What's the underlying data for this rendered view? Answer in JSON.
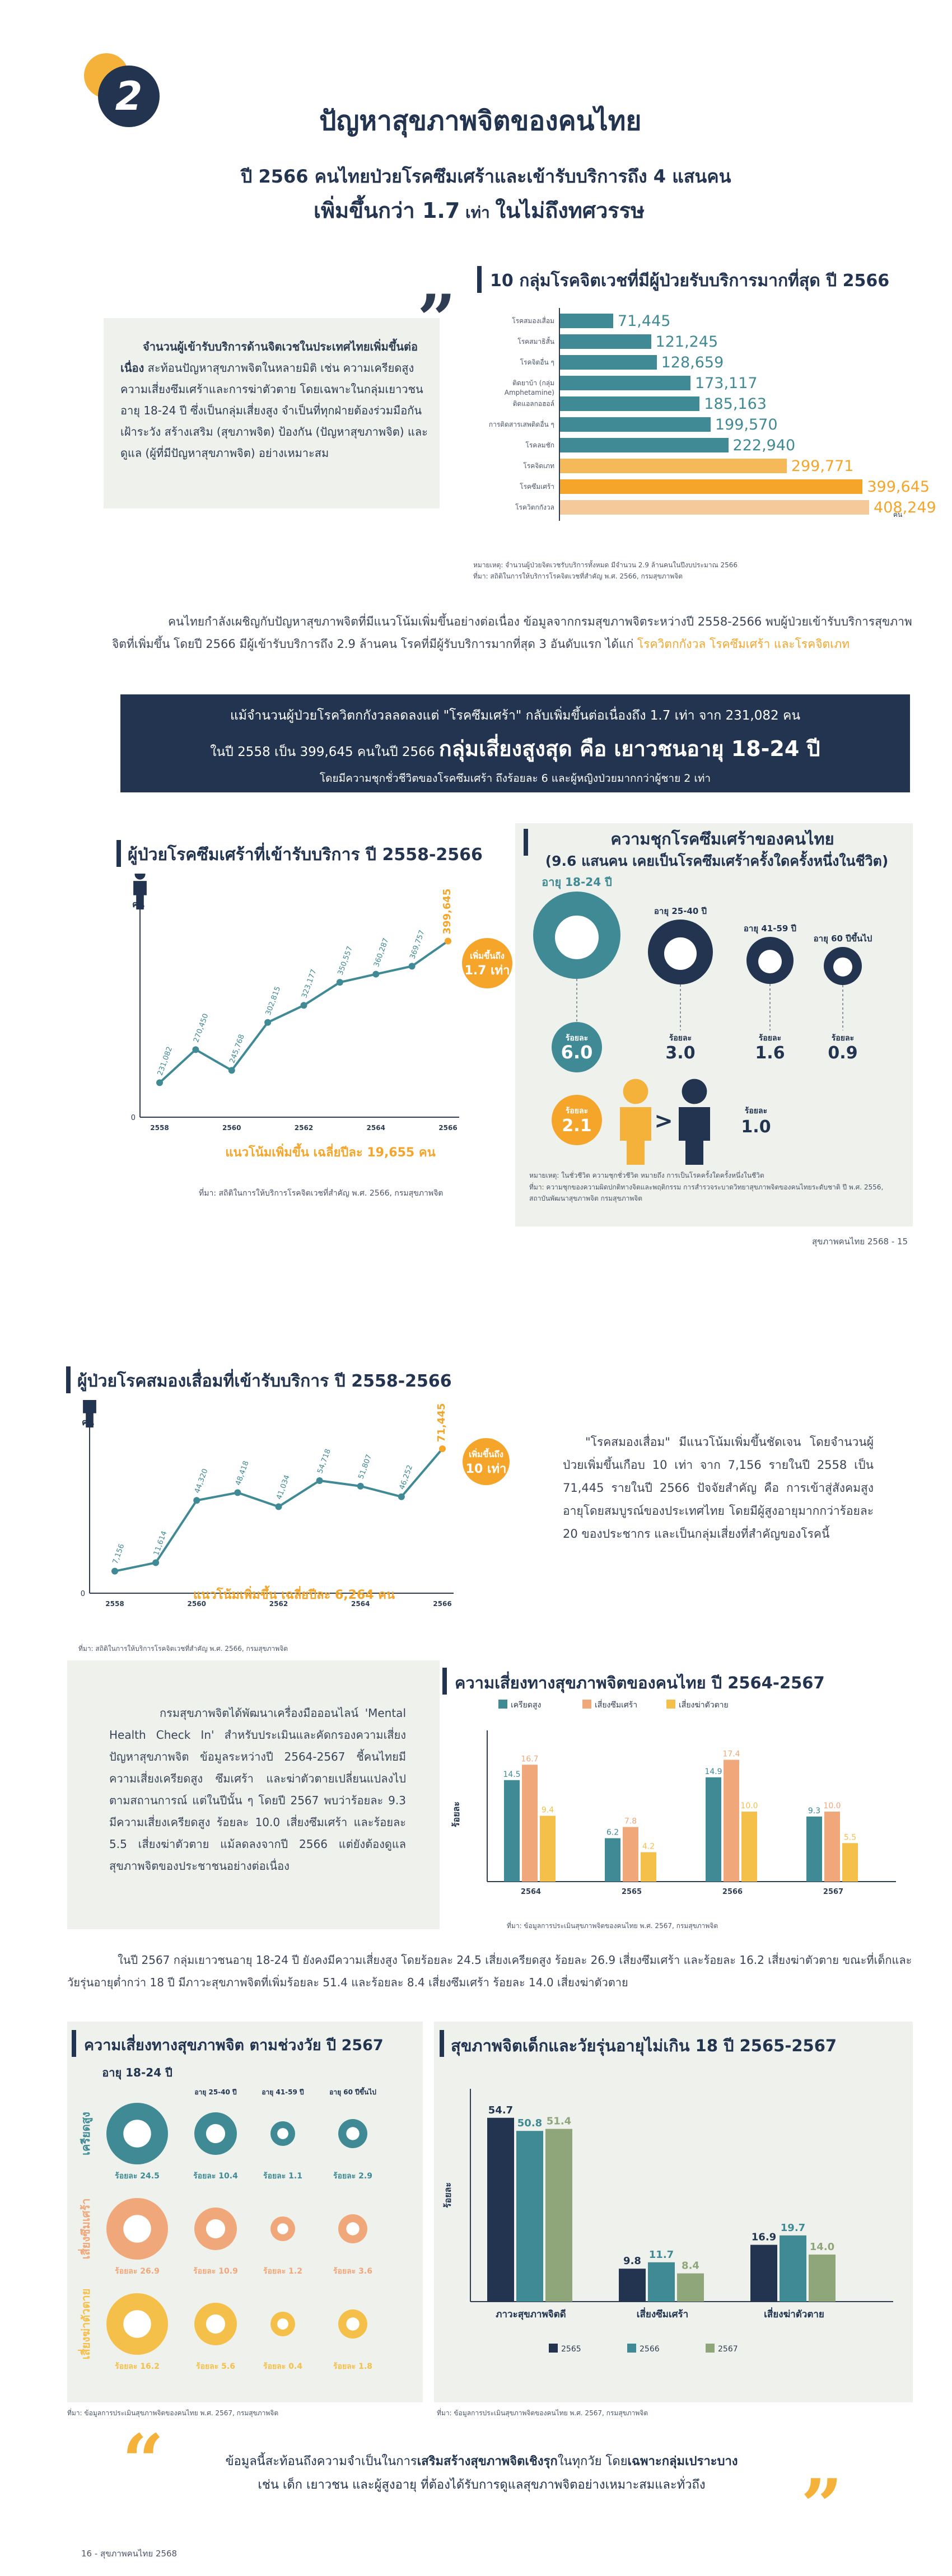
{
  "section_number": "2",
  "title": "ปัญหาสุขภาพจิตของคนไทย",
  "subtitle1": "ปี 2566 คนไทยป่วยโรคซึมเศร้าและเข้ารับบริการถึง 4 แสนคน",
  "subtitle2_pre": "เพิ่มขึ้นกว่า 1.7",
  "subtitle2_mid": " เท่า ",
  "subtitle2_post": "ในไม่ถึงทศวรรษ",
  "intro_box": {
    "bold": "จำนวนผู้เข้ารับบริการด้านจิตเวชในประเทศไทยเพิ่มขึ้นต่อเนื่อง",
    "text": " สะท้อนปัญหาสุขภาพจิตในหลายมิติ เช่น ความเครียดสูง ความเสี่ยงซึมเศร้าและการฆ่าตัวตาย โดยเฉพาะในกลุ่มเยาวชนอายุ 18-24 ปี ซึ่งเป็นกลุ่มเสี่ยงสูง จำเป็นที่ทุกฝ่ายต้องร่วมมือกันเฝ้าระวัง สร้างเสริม (สุขภาพจิต) ป้องกัน (ปัญหาสุขภาพจิต) และดูแล (ผู้ที่มีปัญหาสุขภาพจิต) อย่างเหมาะสม"
  },
  "top10": {
    "title": "10 กลุ่มโรคจิตเวชที่มีผู้ป่วยรับบริการมากที่สุด ปี 2566",
    "unit": "คน",
    "items": [
      {
        "label": "โรคสมองเสื่อม",
        "value": "71,445",
        "num": 71445,
        "highlight": false
      },
      {
        "label": "โรคสมาธิสั้น",
        "value": "121,245",
        "num": 121245,
        "highlight": false
      },
      {
        "label": "โรคจิตอื่น ๆ",
        "value": "128,659",
        "num": 128659,
        "highlight": false
      },
      {
        "label": "ติดยาบ้า (กลุ่ม Amphetamine)",
        "value": "173,117",
        "num": 173117,
        "highlight": false
      },
      {
        "label": "ติดแอลกอฮอล์",
        "value": "185,163",
        "num": 185163,
        "highlight": false
      },
      {
        "label": "การติดสารเสพติดอื่น ๆ",
        "value": "199,570",
        "num": 199570,
        "highlight": false
      },
      {
        "label": "โรคลมชัก",
        "value": "222,940",
        "num": 222940,
        "highlight": false
      },
      {
        "label": "โรคจิตเภท",
        "value": "299,771",
        "num": 299771,
        "highlight": "light"
      },
      {
        "label": "โรคซึมเศร้า",
        "value": "399,645",
        "num": 399645,
        "highlight": "strong"
      },
      {
        "label": "โรควิตกกังวล",
        "value": "408,249",
        "num": 408249,
        "highlight": "pale"
      }
    ],
    "note": "หมายเหตุ: จำนวนผู้ป่วยจิตเวชรับบริการทั้งหมด มีจำนวน 2.9 ล้านคนในปีงบประมาณ 2566",
    "source": "ที่มา: สถิติในการให้บริการโรคจิตเวชที่สำคัญ พ.ศ. 2566, กรมสุขภาพจิต"
  },
  "para1": {
    "text": "คนไทยกำลังเผชิญกับปัญหาสุขภาพจิตที่มีแนวโน้มเพิ่มขึ้นอย่างต่อเนื่อง ข้อมูลจากกรมสุขภาพจิตระหว่างปี 2558-2566 พบผู้ป่วยเข้ารับบริการสุขภาพจิตที่เพิ่มขึ้น โดยปี 2566 มีผู้เข้ารับบริการถึง 2.9 ล้านคน โรคที่มีผู้รับบริการมากที่สุด 3 อันดับแรก ได้แก่ ",
    "highlight": "โรควิตกกังวล โรคซึมเศร้า และโรคจิตเภท"
  },
  "banner": {
    "line1": "แม้จำนวนผู้ป่วยโรควิตกกังวลลดลงแต่ \"โรคซึมเศร้า\" กลับเพิ่มขึ้นต่อเนื่องถึง 1.7 เท่า จาก 231,082 คน",
    "line2_pre": "ในปี 2558 เป็น 399,645 คนในปี 2566 ",
    "line2_big": "กลุ่มเสี่ยงสูงสุด คือ เยาวชนอายุ 18-24 ปี",
    "line3": "โดยมีความชุกชั่วชีวิตของโรคซึมเศร้า ถึงร้อยละ 6 และผู้หญิงป่วยมากกว่าผู้ชาย 2 เท่า"
  },
  "dep_chart": {
    "title": "ผู้ป่วยโรคซึมเศร้าที่เข้ารับบริการ ปี 2558-2566",
    "unit": "คน",
    "years": [
      "2558",
      "2559",
      "2560",
      "2561",
      "2562",
      "2563",
      "2564",
      "2565",
      "2566"
    ],
    "values": [
      231082,
      270450,
      245768,
      302815,
      323177,
      350557,
      360287,
      369757,
      399645
    ],
    "labels": [
      "231,082",
      "270,450",
      "245,768",
      "302,815",
      "323,177",
      "350,557",
      "360,287",
      "369,757",
      "399,645"
    ],
    "badge_line1": "เพิ่มขึ้นถึง",
    "badge_line2": "1.7 เท่า",
    "avg": "แนวโน้มเพิ่มขึ้น เฉลี่ยปีละ 19,655 คน",
    "source": "ที่มา: สถิติในการให้บริการโรคจิตเวชที่สำคัญ พ.ศ. 2566, กรมสุขภาพจิต"
  },
  "prevalence": {
    "title": "ความชุกโรคซึมเศร้าของคนไทย",
    "subtitle": "(9.6 แสนคน เคยเป็นโรคซึมเศร้าครั้งใดครั้งหนึ่งในชีวิต)",
    "groups": [
      {
        "age": "อายุ 18-24 ปี",
        "label": "ร้อยละ",
        "value": "6.0"
      },
      {
        "age": "อายุ 25-40 ปี",
        "label": "ร้อยละ",
        "value": "3.0"
      },
      {
        "age": "อายุ 41-59 ปี",
        "label": "ร้อยละ",
        "value": "1.6"
      },
      {
        "age": "อายุ 60 ปีขึ้นไป",
        "label": "ร้อยละ",
        "value": "0.9"
      }
    ],
    "female": {
      "label": "ร้อยละ",
      "value": "2.1"
    },
    "male": {
      "label": "ร้อยละ",
      "value": "1.0"
    },
    "gt": ">",
    "note": "หมายเหตุ: ในชั่วชีวิต ความชุกชั่วชีวิต หมายถึง การเป็นโรคครั้งใดครั้งหนึ่งในชีวิต",
    "source": "ที่มา: ความชุกของความผิดปกติทางจิตและพฤติกรรม การสำรวจระบาดวิทยาสุขภาพจิตของคนไทยระดับชาติ ปี พ.ศ. 2556, สถาบันพัฒนาสุขภาพจิต กรมสุขภาพจิต"
  },
  "footer_page15": "สุขภาพคนไทย 2568 - 15",
  "dementia_chart": {
    "title": "ผู้ป่วยโรคสมองเสื่อมที่เข้ารับบริการ ปี 2558-2566",
    "unit": "คน",
    "years": [
      "2558",
      "2559",
      "2560",
      "2561",
      "2562",
      "2563",
      "2564",
      "2565",
      "2566"
    ],
    "values": [
      7156,
      11614,
      44320,
      48418,
      41034,
      54718,
      51807,
      46252,
      71445
    ],
    "labels": [
      "7,156",
      "11,614",
      "44,320",
      "48,418",
      "41,034",
      "54,718",
      "51,807",
      "46,252",
      "71,445"
    ],
    "badge_line1": "เพิ่มขึ้นถึง",
    "badge_line2": "10 เท่า",
    "avg": "แนวโน้มเพิ่มขึ้น เฉลี่ยปีละ 6,264 คน",
    "source": "ที่มา: สถิติในการให้บริการโรคจิตเวชที่สำคัญ พ.ศ. 2566, กรมสุขภาพจิต"
  },
  "dementia_text": "\"โรคสมองเสื่อม\" มีแนวโน้มเพิ่มขึ้นชัดเจน โดยจำนวนผู้ป่วยเพิ่มขึ้นเกือบ 10 เท่า จาก 7,156 รายในปี 2558 เป็น 71,445 รายในปี 2566 ปัจจัยสำคัญ คือ การเข้าสู่สังคมสูงอายุโดยสมบูรณ์ของประเทศไทย โดยมีผู้สูงอายุมากกว่าร้อยละ 20 ของประชากร และเป็นกลุ่มเสี่ยงที่สำคัญของโรคนี้",
  "checkin_text": "กรมสุขภาพจิตได้พัฒนาเครื่องมือออนไลน์ 'Mental Health Check In' สำหรับประเมินและคัดกรองความเสี่ยงปัญหาสุขภาพจิต ข้อมูลระหว่างปี 2564-2567 ชี้คนไทยมีความเสี่ยงเครียดสูง ซึมเศร้า และฆ่าตัวตายเปลี่ยนแปลงไปตามสถานการณ์ แต่ในปีนั้น ๆ โดยปี 2567 พบว่าร้อยละ 9.3 มีความเสี่ยงเครียดสูง ร้อยละ 10.0 เสี่ยงซึมเศร้า และร้อยละ 5.5 เสี่ยงฆ่าตัวตาย แม้ลดลงจากปี 2566 แต่ยังต้องดูแลสุขภาพจิตของประชาชนอย่างต่อเนื่อง",
  "risk_chart": {
    "title": "ความเสี่ยงทางสุขภาพจิตของคนไทย ปี 2564-2567",
    "ylabel": "ร้อยละ",
    "series": [
      {
        "name": "เครียดสูง",
        "color": "#3f8a94",
        "values": [
          14.5,
          6.2,
          14.9,
          9.3
        ]
      },
      {
        "name": "เสี่ยงซึมเศร้า",
        "color": "#f0a77a",
        "values": [
          16.7,
          7.8,
          17.4,
          10.0
        ]
      },
      {
        "name": "เสี่ยงฆ่าตัวตาย",
        "color": "#f5c04a",
        "values": [
          9.4,
          4.2,
          10.0,
          5.5
        ]
      }
    ],
    "value_labels": [
      [
        "14.5",
        "16.7",
        "9.4"
      ],
      [
        "6.2",
        "7.8",
        "4.2"
      ],
      [
        "14.9",
        "17.4",
        "10.0"
      ],
      [
        "9.3",
        "10.0",
        "5.5"
      ]
    ],
    "categories": [
      "2564",
      "2565",
      "2566",
      "2567"
    ],
    "source": "ที่มา: ข้อมูลการประเมินสุขภาพจิตของคนไทย พ.ศ. 2567, กรมสุขภาพจิต"
  },
  "para2": "ในปี 2567 กลุ่มเยาวชนอายุ 18-24 ปี ยังคงมีความเสี่ยงสูง โดยร้อยละ 24.5 เสี่ยงเครียดสูง ร้อยละ 26.9 เสี่ยงซึมเศร้า และร้อยละ 16.2 เสี่ยงฆ่าตัวตาย ขณะที่เด็กและวัยรุ่นอายุต่ำกว่า 18 ปี มีภาวะสุขภาพจิตที่เพิ่มร้อยละ 51.4 และร้อยละ 8.4 เสี่ยงซึมเศร้า ร้อยละ 14.0 เสี่ยงฆ่าตัวตาย",
  "age_risk": {
    "title": "ความเสี่ยงทางสุขภาพจิต ตามช่วงวัย ปี 2567",
    "ages": [
      "อายุ 18-24 ปี",
      "อายุ 25-40 ปี",
      "อายุ 41-59 ปี",
      "อายุ 60 ปีขึ้นไป"
    ],
    "rows": [
      {
        "label": "เครียดสูง",
        "color": "#3f8a94",
        "values": [
          "ร้อยละ 24.5",
          "ร้อยละ 10.4",
          "ร้อยละ 1.1",
          "ร้อยละ 2.9"
        ]
      },
      {
        "label": "เสี่ยงซึมเศร้า",
        "color": "#f0a77a",
        "values": [
          "ร้อยละ 26.9",
          "ร้อยละ 10.9",
          "ร้อยละ 1.2",
          "ร้อยละ 3.6"
        ]
      },
      {
        "label": "เสี่ยงฆ่าตัวตาย",
        "color": "#f5c04a",
        "values": [
          "ร้อยละ 16.2",
          "ร้อยละ 5.6",
          "ร้อยละ 0.4",
          "ร้อยละ 1.8"
        ]
      }
    ],
    "source": "ที่มา: ข้อมูลการประเมินสุขภาพจิตของคนไทย พ.ศ. 2567, กรมสุขภาพจิต"
  },
  "youth_chart": {
    "title": "สุขภาพจิตเด็กและวัยรุ่นอายุไม่เกิน 18 ปี 2565-2567",
    "ylabel": "ร้อยละ",
    "categories": [
      "ภาวะสุขภาพจิตดี",
      "เสี่ยงซึมเศร้า",
      "เสี่ยงฆ่าตัวตาย"
    ],
    "series": [
      {
        "name": "2565",
        "color": "#22344f",
        "values": [
          54.7,
          9.8,
          16.9
        ]
      },
      {
        "name": "2566",
        "color": "#3f8a94",
        "values": [
          50.8,
          11.7,
          19.7
        ]
      },
      {
        "name": "2567",
        "color": "#8ea67a",
        "values": [
          51.4,
          8.4,
          14.0
        ]
      }
    ],
    "value_labels": [
      [
        "54.7",
        "50.8",
        "51.4"
      ],
      [
        "9.8",
        "11.7",
        "8.4"
      ],
      [
        "16.9",
        "19.7",
        "14.0"
      ]
    ],
    "source": "ที่มา: ข้อมูลการประเมินสุขภาพจิตของคนไทย พ.ศ. 2567, กรมสุขภาพจิต"
  },
  "quote": {
    "pre": "ข้อมูลนี้สะท้อนถึงความจำเป็นในการ",
    "bold1": "เสริมสร้างสุขภาพจิตเชิงรุก",
    "mid": "ในทุกวัย โดย",
    "bold2": "เฉพาะกลุ่มเปราะบาง",
    "line2": "เช่น เด็ก เยาวชน และผู้สูงอายุ ที่ต้องได้รับการดูแลสุขภาพจิตอย่างเหมาะสมและทั่วถึง"
  },
  "footer_page16": "16 - สุขภาพคนไทย 2568"
}
